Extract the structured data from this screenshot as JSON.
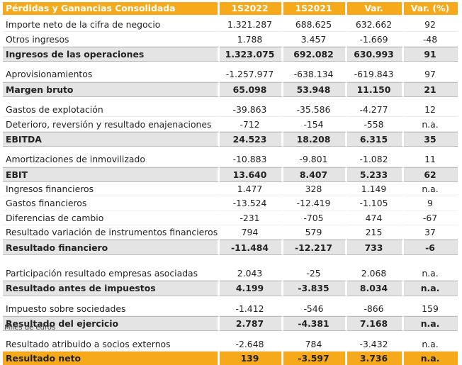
{
  "table": {
    "header": {
      "title": "Pérdidas y Ganancias Consolidada",
      "col1": "1S2022",
      "col2": "1S2021",
      "col3": "Var.",
      "col4": "Var. (%)"
    },
    "rows": [
      {
        "label": "Importe neto de la cifra de negocio",
        "v1": "1.321.287",
        "v2": "688.625",
        "v3": "632.662",
        "v4": "92"
      },
      {
        "label": "Otros ingresos",
        "v1": "1.788",
        "v2": "3.457",
        "v3": "-1.669",
        "v4": "-48"
      },
      {
        "label": "Ingresos de las operaciones",
        "v1": "1.323.075",
        "v2": "692.082",
        "v3": "630.993",
        "v4": "91"
      },
      {
        "label": "Aprovisionamientos",
        "v1": "-1.257.977",
        "v2": "-638.134",
        "v3": "-619.843",
        "v4": "97"
      },
      {
        "label": "Margen bruto",
        "v1": "65.098",
        "v2": "53.948",
        "v3": "11.150",
        "v4": "21"
      },
      {
        "label": "Gastos de explotación",
        "v1": "-39.863",
        "v2": "-35.586",
        "v3": "-4.277",
        "v4": "12"
      },
      {
        "label": "Deterioro, reversión y resultado enajenaciones",
        "v1": "-712",
        "v2": "-154",
        "v3": "-558",
        "v4": "n.a."
      },
      {
        "label": "EBITDA",
        "v1": "24.523",
        "v2": "18.208",
        "v3": "6.315",
        "v4": "35"
      },
      {
        "label": "Amortizaciones de inmovilizado",
        "v1": "-10.883",
        "v2": "-9.801",
        "v3": "-1.082",
        "v4": "11"
      },
      {
        "label": "EBIT",
        "v1": "13.640",
        "v2": "8.407",
        "v3": "5.233",
        "v4": "62"
      },
      {
        "label": "Ingresos financieros",
        "v1": "1.477",
        "v2": "328",
        "v3": "1.149",
        "v4": "n.a."
      },
      {
        "label": "Gastos financieros",
        "v1": "-13.524",
        "v2": "-12.419",
        "v3": "-1.105",
        "v4": "9"
      },
      {
        "label": "Diferencias de cambio",
        "v1": "-231",
        "v2": "-705",
        "v3": "474",
        "v4": "-67"
      },
      {
        "label": "Resultado variación de instrumentos financieros",
        "v1": "794",
        "v2": "579",
        "v3": "215",
        "v4": "37"
      },
      {
        "label": "Resultado financiero",
        "v1": "-11.484",
        "v2": "-12.217",
        "v3": "733",
        "v4": "-6"
      },
      {
        "label": "Participación resultado empresas asociadas",
        "v1": "2.043",
        "v2": "-25",
        "v3": "2.068",
        "v4": "n.a."
      },
      {
        "label": "Resultado antes de impuestos",
        "v1": "4.199",
        "v2": "-3.835",
        "v3": "8.034",
        "v4": "n.a."
      },
      {
        "label": "Impuesto sobre sociedades",
        "v1": "-1.412",
        "v2": "-546",
        "v3": "-866",
        "v4": "159"
      },
      {
        "label": "Resultado del ejercicio",
        "v1": "2.787",
        "v2": "-4.381",
        "v3": "7.168",
        "v4": "n.a."
      },
      {
        "label": "Resultado atribuido a socios externos",
        "v1": "-2.648",
        "v2": "784",
        "v3": "-3.432",
        "v4": "n.a."
      },
      {
        "label": "Resultado neto",
        "v1": "139",
        "v2": "-3.597",
        "v3": "3.736",
        "v4": "n.a."
      }
    ]
  },
  "footnote": "Miles de euros",
  "colors": {
    "accent": "#f6a91b",
    "total_row": "#e4e4e4"
  }
}
